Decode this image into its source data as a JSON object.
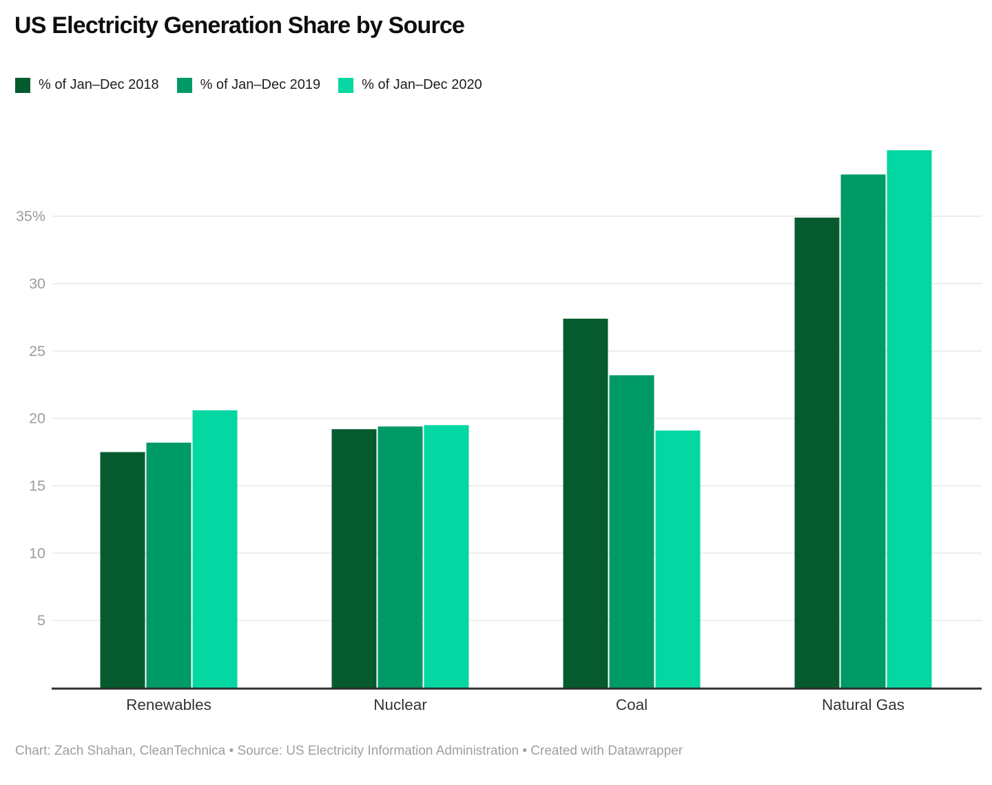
{
  "title": "US Electricity Generation Share by Source",
  "footer": {
    "text": "Chart: Zach Shahan, CleanTechnica • Source: US Electricity Information Administration • Created with Datawrapper"
  },
  "colors": {
    "series_2018": "#065b2e",
    "series_2019": "#009a66",
    "series_2020": "#04d7a1",
    "gridline": "#e7e7e7",
    "axis_line": "#2e2e2e",
    "tick_text": "#9c9c9c",
    "category_text": "#333333"
  },
  "chart_data": {
    "type": "bar",
    "grouped": true,
    "title": "US Electricity Generation Share by Source",
    "categories": [
      "Renewables",
      "Nuclear",
      "Coal",
      "Natural Gas"
    ],
    "series": [
      {
        "name": "% of Jan–Dec 2018",
        "color": "#065b2e",
        "values": [
          17.5,
          19.2,
          27.4,
          34.9
        ]
      },
      {
        "name": "% of Jan–Dec 2019",
        "color": "#009a66",
        "values": [
          18.2,
          19.4,
          23.2,
          38.1
        ]
      },
      {
        "name": "% of Jan–Dec 2020",
        "color": "#04d7a1",
        "values": [
          20.6,
          19.5,
          19.1,
          39.9
        ]
      }
    ],
    "xlabel": "",
    "ylabel": "",
    "ylim": [
      0,
      40
    ],
    "yticks": [
      {
        "value": 5,
        "label": "5"
      },
      {
        "value": 10,
        "label": "10"
      },
      {
        "value": 15,
        "label": "15"
      },
      {
        "value": 20,
        "label": "20"
      },
      {
        "value": 25,
        "label": "25"
      },
      {
        "value": 30,
        "label": "30"
      },
      {
        "value": 35,
        "label": "35%"
      }
    ],
    "grid": true,
    "legend_position": "top-left"
  }
}
